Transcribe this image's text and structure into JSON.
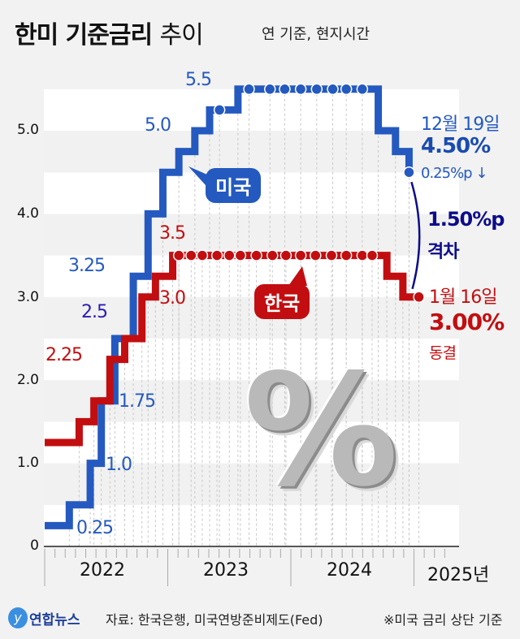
{
  "header": {
    "title_bold": "한미 기준금리",
    "title_light": "추이",
    "subtitle": "연 기준, 현지시간"
  },
  "colors": {
    "us": "#2459c0",
    "korea": "#c20e10",
    "gap": "#0d0d8a"
  },
  "chart_data": {
    "type": "line",
    "step": true,
    "title": "한미 기준금리 추이",
    "ylim": [
      0,
      5.5
    ],
    "yticks": [
      "0",
      "1.0",
      "2.0",
      "3.0",
      "4.0",
      "5.0"
    ],
    "ytick_values": [
      0,
      1,
      2,
      3,
      4,
      5
    ],
    "xlim": [
      2022,
      2025.3
    ],
    "xticks": [
      "2022",
      "2023",
      "2024",
      "2025년"
    ],
    "series": [
      {
        "name": "미국",
        "changes": [
          [
            2022.0,
            0.25
          ],
          [
            2022.2,
            0.5
          ],
          [
            2022.37,
            1.0
          ],
          [
            2022.46,
            1.75
          ],
          [
            2022.57,
            2.5
          ],
          [
            2022.72,
            3.25
          ],
          [
            2022.84,
            4.0
          ],
          [
            2022.96,
            4.5
          ],
          [
            2023.09,
            4.75
          ],
          [
            2023.22,
            5.0
          ],
          [
            2023.34,
            5.25
          ],
          [
            2023.57,
            5.5
          ],
          [
            2024.71,
            5.0
          ],
          [
            2024.85,
            4.75
          ],
          [
            2024.96,
            4.5
          ]
        ],
        "hold_points": [
          [
            2023.42,
            5.25
          ],
          [
            2023.66,
            5.5
          ],
          [
            2023.83,
            5.5
          ],
          [
            2023.95,
            5.5
          ],
          [
            2024.08,
            5.5
          ],
          [
            2024.21,
            5.5
          ],
          [
            2024.34,
            5.5
          ],
          [
            2024.45,
            5.5
          ],
          [
            2024.58,
            5.5
          ],
          [
            2024.96,
            4.5
          ]
        ]
      },
      {
        "name": "한국",
        "changes": [
          [
            2022.0,
            1.25
          ],
          [
            2022.28,
            1.5
          ],
          [
            2022.4,
            1.75
          ],
          [
            2022.53,
            2.25
          ],
          [
            2022.65,
            2.5
          ],
          [
            2022.79,
            3.0
          ],
          [
            2022.9,
            3.25
          ],
          [
            2023.04,
            3.5
          ],
          [
            2024.78,
            3.25
          ],
          [
            2024.91,
            3.0
          ]
        ],
        "end": 2025.04,
        "hold_points": [
          [
            2023.09,
            3.5
          ],
          [
            2023.19,
            3.5
          ],
          [
            2023.28,
            3.5
          ],
          [
            2023.4,
            3.5
          ],
          [
            2023.5,
            3.5
          ],
          [
            2023.59,
            3.5
          ],
          [
            2023.72,
            3.5
          ],
          [
            2023.85,
            3.5
          ],
          [
            2023.96,
            3.5
          ],
          [
            2024.08,
            3.5
          ],
          [
            2024.2,
            3.5
          ],
          [
            2024.33,
            3.5
          ],
          [
            2024.45,
            3.5
          ],
          [
            2024.58,
            3.5
          ],
          [
            2024.66,
            3.5
          ],
          [
            2025.04,
            3.0
          ]
        ]
      }
    ],
    "annotations": {
      "us": [
        "0.25",
        "1.0",
        "1.75",
        "2.5",
        "3.25",
        "5.0",
        "5.5"
      ],
      "korea": [
        "2.25",
        "3.0",
        "3.5"
      ],
      "us_label": "미국",
      "korea_label": "한국",
      "us_latest": {
        "date": "12월 19일",
        "rate": "4.50%",
        "change": "0.25%p ↓"
      },
      "korea_latest": {
        "date": "1월 16일",
        "rate": "3.00%",
        "change": "동결"
      },
      "gap": {
        "value": "1.50%p",
        "label": "격차"
      },
      "decor": "%"
    }
  },
  "footer": {
    "logo": "y",
    "brand": "연합뉴스",
    "source": "자료: 한국은행, 미국연방준비제도(Fed)",
    "note": "※미국 금리 상단 기준"
  }
}
